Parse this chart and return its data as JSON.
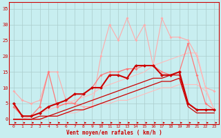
{
  "background_color": "#c8eef0",
  "grid_color": "#aacccc",
  "xlabel": "Vent moyen/en rafales ( km/h )",
  "xlim": [
    -0.5,
    23.5
  ],
  "ylim": [
    -1.5,
    37
  ],
  "yticks": [
    0,
    5,
    10,
    15,
    20,
    25,
    30,
    35
  ],
  "xticks": [
    0,
    1,
    2,
    3,
    4,
    5,
    6,
    7,
    8,
    9,
    10,
    11,
    12,
    13,
    14,
    15,
    16,
    17,
    18,
    19,
    20,
    21,
    22,
    23
  ],
  "line_light_pink": {
    "x": [
      0,
      1,
      2,
      3,
      4,
      5,
      6,
      7,
      8,
      9,
      10,
      11,
      12,
      13,
      14,
      15,
      16,
      17,
      18,
      19,
      20,
      21,
      22,
      23
    ],
    "y": [
      9,
      6,
      5,
      6,
      15,
      15,
      6,
      5,
      4,
      4,
      20,
      30,
      25,
      32,
      25,
      30,
      17,
      32,
      26,
      26,
      25,
      20,
      10,
      9
    ],
    "color": "#ffaaaa",
    "lw": 0.8,
    "marker": "D",
    "ms": 2.0
  },
  "line_medium_pink": {
    "x": [
      0,
      1,
      2,
      3,
      4,
      5,
      6,
      7,
      8,
      9,
      10,
      11,
      12,
      13,
      14,
      15,
      16,
      17,
      18,
      19,
      20,
      21,
      22,
      23
    ],
    "y": [
      4,
      1,
      1,
      4,
      15,
      4,
      5,
      5,
      8,
      10,
      14,
      15,
      15,
      16,
      16,
      17,
      17,
      15,
      14,
      15,
      24,
      14,
      5,
      3
    ],
    "color": "#ff7777",
    "lw": 0.9,
    "marker": "D",
    "ms": 2.0
  },
  "line_upper_band": {
    "x": [
      0,
      1,
      2,
      3,
      4,
      5,
      6,
      7,
      8,
      9,
      10,
      11,
      12,
      13,
      14,
      15,
      16,
      17,
      18,
      19,
      20,
      21,
      22,
      23
    ],
    "y": [
      0,
      0,
      1,
      2,
      3,
      4,
      5,
      6,
      7,
      8,
      10,
      11,
      12,
      13,
      14,
      15,
      17,
      18,
      19,
      20,
      21,
      21,
      10,
      3
    ],
    "color": "#ffbbbb",
    "lw": 0.8,
    "marker": null,
    "ms": 0
  },
  "line_lower_band": {
    "x": [
      0,
      1,
      2,
      3,
      4,
      5,
      6,
      7,
      8,
      9,
      10,
      11,
      12,
      13,
      14,
      15,
      16,
      17,
      18,
      19,
      20,
      21,
      22,
      23
    ],
    "y": [
      0,
      0,
      0,
      0,
      1,
      1,
      2,
      2,
      3,
      4,
      5,
      5,
      6,
      6,
      7,
      8,
      9,
      10,
      10,
      11,
      11,
      11,
      9,
      3
    ],
    "color": "#ffbbbb",
    "lw": 0.8,
    "marker": null,
    "ms": 0
  },
  "line_dark_main": {
    "x": [
      0,
      1,
      2,
      3,
      4,
      5,
      6,
      7,
      8,
      9,
      10,
      11,
      12,
      13,
      14,
      15,
      16,
      17,
      18,
      19,
      20,
      21,
      22,
      23
    ],
    "y": [
      5,
      1,
      1,
      2,
      4,
      5,
      6,
      8,
      8,
      10,
      10,
      14,
      14,
      13,
      17,
      17,
      17,
      14,
      14,
      15,
      5,
      3,
      3,
      3
    ],
    "color": "#cc0000",
    "lw": 1.5,
    "marker": "D",
    "ms": 2.5
  },
  "line_dark_upper": {
    "x": [
      0,
      1,
      2,
      3,
      4,
      5,
      6,
      7,
      8,
      9,
      10,
      11,
      12,
      13,
      14,
      15,
      16,
      17,
      18,
      19,
      20,
      21,
      22,
      23
    ],
    "y": [
      0,
      0,
      0,
      1,
      1,
      2,
      3,
      4,
      5,
      6,
      7,
      8,
      9,
      10,
      11,
      12,
      13,
      13,
      14,
      14,
      5,
      3,
      3,
      3
    ],
    "color": "#cc0000",
    "lw": 0.9,
    "marker": null,
    "ms": 0
  },
  "line_dark_lower": {
    "x": [
      0,
      1,
      2,
      3,
      4,
      5,
      6,
      7,
      8,
      9,
      10,
      11,
      12,
      13,
      14,
      15,
      16,
      17,
      18,
      19,
      20,
      21,
      22,
      23
    ],
    "y": [
      0,
      0,
      0,
      0,
      1,
      1,
      2,
      3,
      3,
      4,
      5,
      6,
      7,
      8,
      9,
      10,
      11,
      12,
      12,
      13,
      4,
      2,
      2,
      2
    ],
    "color": "#cc0000",
    "lw": 0.9,
    "marker": null,
    "ms": 0
  }
}
